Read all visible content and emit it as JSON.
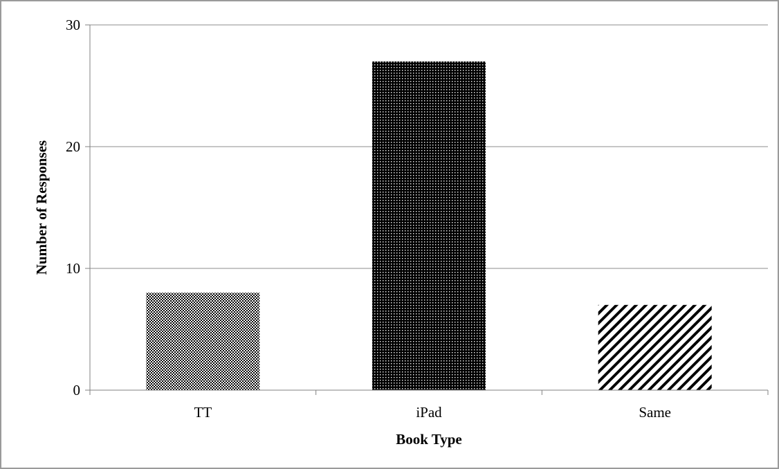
{
  "chart_data": {
    "type": "bar",
    "title": "",
    "xlabel": "Book Type",
    "ylabel": "Number of Responses",
    "categories": [
      "TT",
      "iPad",
      "Same"
    ],
    "values": [
      8,
      27,
      7
    ],
    "ylim": [
      0,
      30
    ],
    "yticks": [
      0,
      10,
      20,
      30
    ],
    "grid": true,
    "legend": "none",
    "bar_patterns": [
      "light-dots",
      "dense-dots",
      "diagonal-stripes"
    ],
    "colors": {
      "bar_dark": "#000000",
      "bar_light": "#ffffff",
      "grid": "#8c8c8c",
      "axis": "#808080",
      "frame": "#9a9a9a"
    }
  }
}
